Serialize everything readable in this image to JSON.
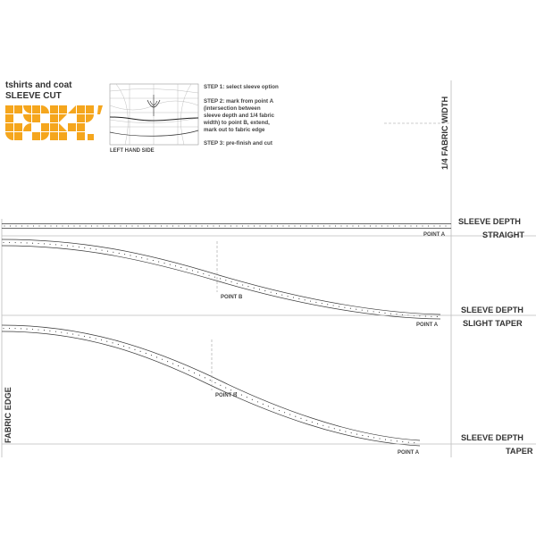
{
  "header": {
    "title_line1": "tshirts and coat",
    "title_line2": "SLEEVE CUT",
    "brand_color": "#F5A61D",
    "thumbnail_caption": "LEFT HAND SIDE"
  },
  "steps": [
    "STEP 1: select sleeve option",
    "STEP 2: mark from point A",
    "(intersection between",
    "sleeve depth and 1/4 fabric",
    "width) to point B, extend,",
    "mark out to fabric edge",
    "STEP 3: pre-finish and cut"
  ],
  "side_labels": {
    "quarter_fabric_width": "1/4 FABRIC WIDTH",
    "fabric_edge": "FABRIC EDGE"
  },
  "options": [
    {
      "depth_label": "SLEEVE DEPTH",
      "name": "STRAIGHT",
      "point_a": "POINT A",
      "point_b": ""
    },
    {
      "depth_label": "SLEEVE DEPTH",
      "name": "SLIGHT TAPER",
      "point_a": "POINT A",
      "point_b": "POINT B"
    },
    {
      "depth_label": "SLEEVE DEPTH",
      "name": "TAPER",
      "point_a": "POINT A",
      "point_b": "POINT B"
    }
  ]
}
